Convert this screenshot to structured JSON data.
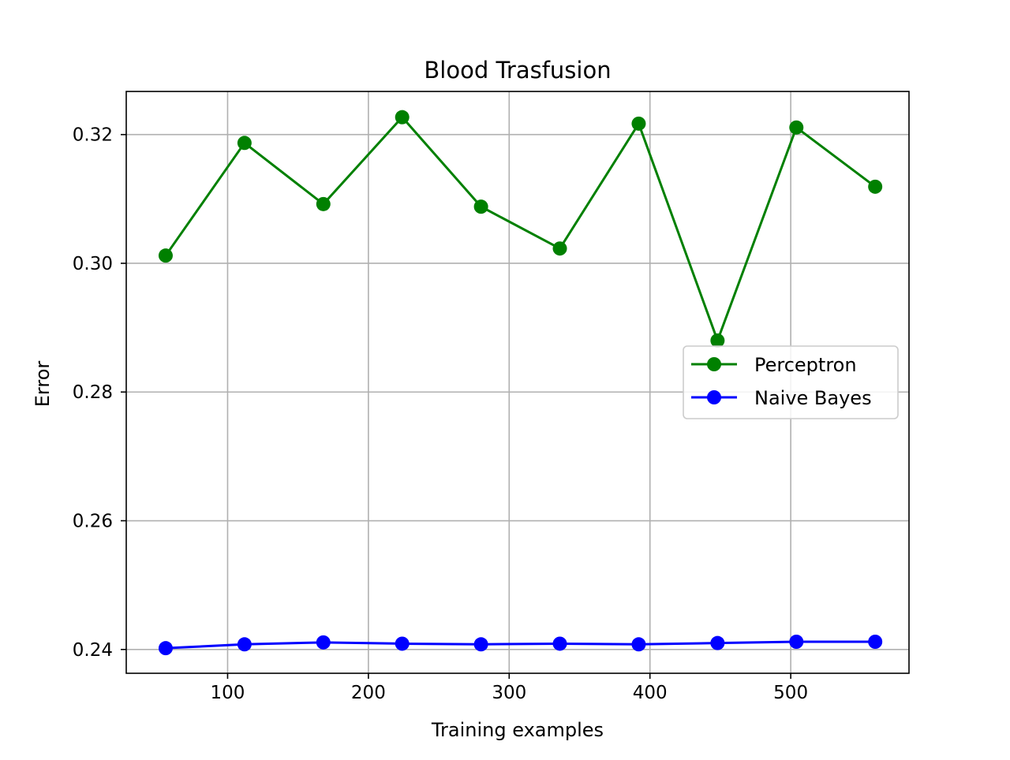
{
  "chart_data": {
    "type": "line",
    "title": "Blood Trasfusion",
    "xlabel": "Training examples",
    "ylabel": "Error",
    "xlim": [
      28,
      584
    ],
    "ylim": [
      0.2363,
      0.3267
    ],
    "xticks": [
      100,
      200,
      300,
      400,
      500
    ],
    "xtick_labels": [
      "100",
      "200",
      "300",
      "400",
      "500"
    ],
    "yticks": [
      0.24,
      0.26,
      0.28,
      0.3,
      0.32
    ],
    "ytick_labels": [
      "0.24",
      "0.26",
      "0.28",
      "0.30",
      "0.32"
    ],
    "grid": true,
    "legend_position": "center-right",
    "x": [
      56,
      112,
      168,
      224,
      280,
      336,
      392,
      448,
      504,
      560
    ],
    "series": [
      {
        "name": "Perceptron",
        "color": "#008000",
        "marker": "circle",
        "values": [
          0.3012,
          0.3187,
          0.3092,
          0.3227,
          0.3088,
          0.3023,
          0.3217,
          0.288,
          0.3211,
          0.3119
        ]
      },
      {
        "name": "Naive Bayes",
        "color": "#0000ff",
        "marker": "circle",
        "values": [
          0.2402,
          0.2408,
          0.2411,
          0.2409,
          0.2408,
          0.2409,
          0.2408,
          0.241,
          0.2412,
          0.2412
        ]
      }
    ]
  }
}
